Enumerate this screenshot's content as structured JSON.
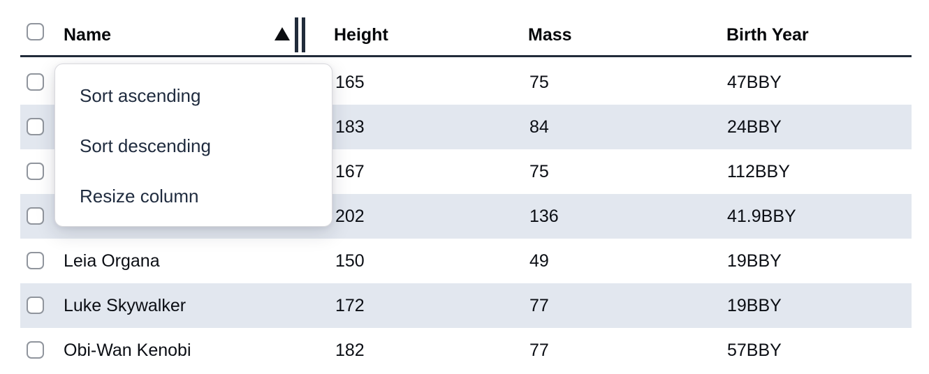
{
  "table": {
    "columns": [
      {
        "label": "Name",
        "sort_indicator": "ascending"
      },
      {
        "label": "Height"
      },
      {
        "label": "Mass"
      },
      {
        "label": "Birth Year"
      }
    ],
    "rows": [
      {
        "name": "",
        "height": "165",
        "mass": "75",
        "birth_year": "47BBY"
      },
      {
        "name": "",
        "height": "183",
        "mass": "84",
        "birth_year": "24BBY"
      },
      {
        "name": "",
        "height": "167",
        "mass": "75",
        "birth_year": "112BBY"
      },
      {
        "name": "",
        "height": "202",
        "mass": "136",
        "birth_year": "41.9BBY"
      },
      {
        "name": "Leia Organa",
        "height": "150",
        "mass": "49",
        "birth_year": "19BBY"
      },
      {
        "name": "Luke Skywalker",
        "height": "172",
        "mass": "77",
        "birth_year": "19BBY"
      },
      {
        "name": "Obi-Wan Kenobi",
        "height": "182",
        "mass": "77",
        "birth_year": "57BBY"
      }
    ]
  },
  "menu": {
    "items": [
      {
        "label": "Sort ascending"
      },
      {
        "label": "Sort descending"
      },
      {
        "label": "Resize column"
      }
    ]
  },
  "icons": {
    "sort_indicator": "ascending-triangle",
    "resize_handle": "double-vertical-bars",
    "checkbox": "unchecked-checkbox"
  },
  "colors": {
    "stripe": "#e2e7ef",
    "header_rule": "#212b3a",
    "cell_text": "#0b0e14",
    "menu_text": "#1f2b3e",
    "checkbox_border": "#90959d"
  }
}
